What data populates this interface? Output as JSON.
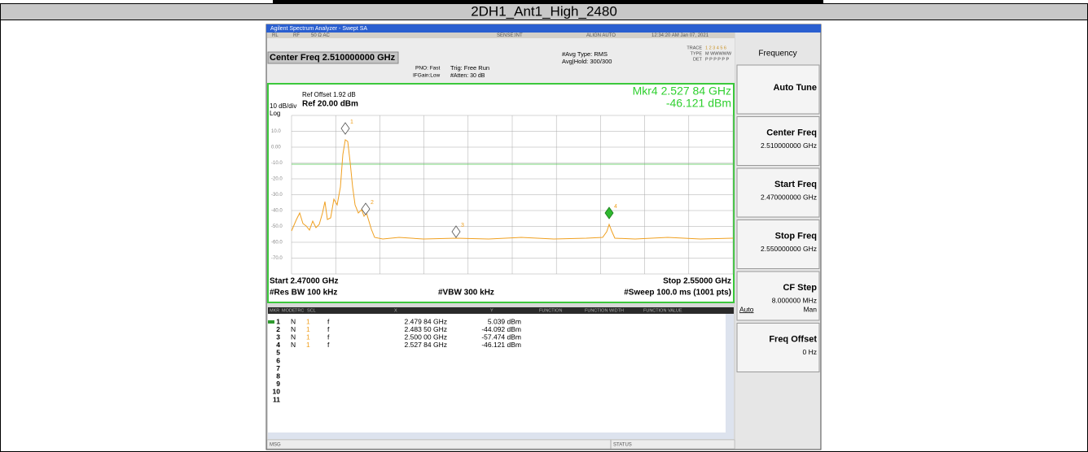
{
  "document": {
    "title": "2DH1_Ant1_High_2480"
  },
  "window": {
    "title": "Agilent Spectrum Analyzer - Swept SA"
  },
  "status_bar": [
    "RL",
    "RF",
    "50 Ω AC",
    "SENSE:INT",
    "ALIGN AUTO",
    "12:34:20 AM Jan 07, 2021"
  ],
  "header": {
    "center_freq": "Center Freq 2.510000000 GHz",
    "pno": "PNO: Fast",
    "ifgain": "IFGain:Low",
    "trig": "Trig: Free Run",
    "atten": "#Atten: 30 dB",
    "avg_type": "#Avg Type: RMS",
    "avg_hold": "Avg|Hold: 300/300",
    "trace": "TRACE",
    "trace_nums": "1 2 3 4 5 6",
    "type": "TYPE",
    "type_vals": "M WWWWW",
    "det": "DET",
    "det_vals": "P P P P P P"
  },
  "graph": {
    "ref_offset": "Ref Offset 1.92 dB",
    "ref_level": "Ref 20.00 dBm",
    "scale": "10 dB/div",
    "scale_type": "Log",
    "marker_readout": [
      "Mkr4 2.527 84 GHz",
      "-46.121 dBm"
    ],
    "y_labels": [
      "10.0",
      "0.00",
      "-10.0",
      "-20.0",
      "-30.0",
      "-40.0",
      "-50.0",
      "-60.0",
      "-70.0"
    ],
    "start": "Start 2.47000 GHz",
    "stop": "Stop 2.55000 GHz",
    "rbw": "#Res BW 100 kHz",
    "vbw": "#VBW 300 kHz",
    "sweep": "#Sweep 100.0 ms (1001 pts)"
  },
  "marker_table": {
    "columns": [
      "MKR",
      "MODE",
      "TRC",
      "SCL",
      "X",
      "Y",
      "FUNCTION",
      "FUNCTION WIDTH",
      "FUNCTION VALUE"
    ],
    "rows": [
      [
        "1",
        "N",
        "1",
        "f",
        "2.479 84 GHz",
        "5.039 dBm"
      ],
      [
        "2",
        "N",
        "1",
        "f",
        "2.483 50 GHz",
        "-44.092 dBm"
      ],
      [
        "3",
        "N",
        "1",
        "f",
        "2.500 00 GHz",
        "-57.474 dBm"
      ],
      [
        "4",
        "N",
        "1",
        "f",
        "2.527 84 GHz",
        "-46.121 dBm"
      ],
      [
        "5"
      ],
      [
        "6"
      ],
      [
        "7"
      ],
      [
        "8"
      ],
      [
        "9"
      ],
      [
        "10"
      ],
      [
        "11"
      ]
    ]
  },
  "footer": {
    "msg": "MSG",
    "status": "STATUS"
  },
  "softkeys": {
    "menu": "Frequency",
    "keys": [
      {
        "label": "Auto Tune"
      },
      {
        "label": "Center Freq",
        "value": "2.510000000 GHz"
      },
      {
        "label": "Start Freq",
        "value": "2.470000000 GHz"
      },
      {
        "label": "Stop Freq",
        "value": "2.550000000 GHz"
      },
      {
        "label": "CF Step",
        "value": "8.000000 MHz",
        "options": [
          "Auto",
          "Man"
        ]
      },
      {
        "label": "Freq Offset",
        "value": "0 Hz"
      }
    ]
  }
}
